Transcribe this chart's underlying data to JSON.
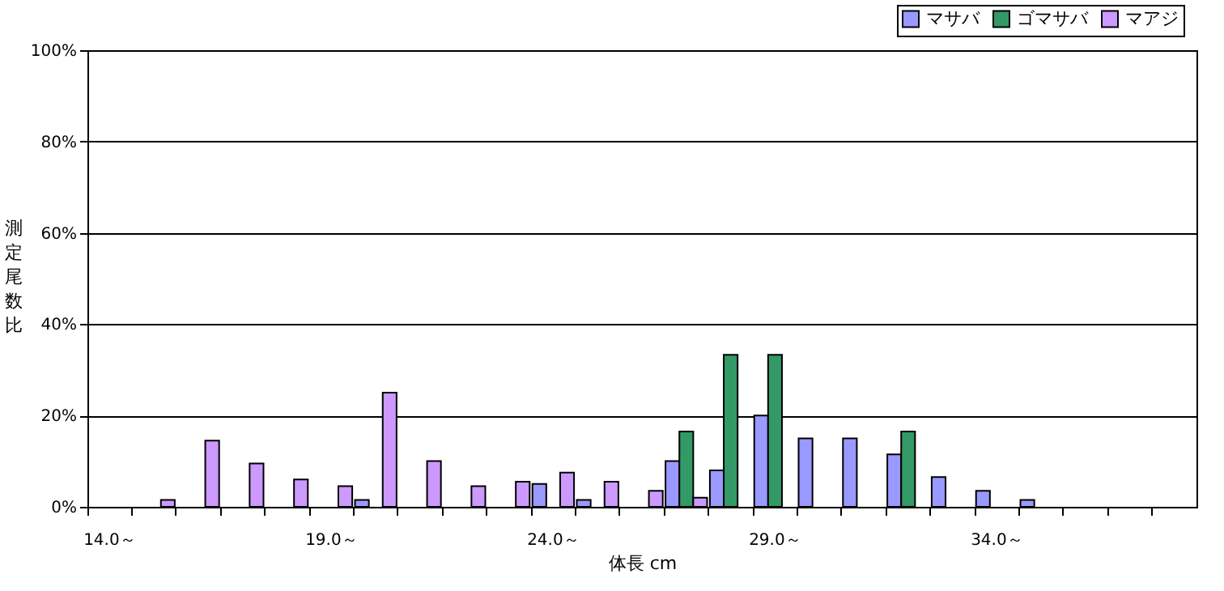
{
  "chart_data": {
    "type": "bar",
    "xlabel": "体長 cm",
    "ylabel": "測定尾数比",
    "categories": [
      "14.0～",
      null,
      null,
      null,
      null,
      "19.0～",
      null,
      null,
      null,
      null,
      "24.0～",
      null,
      null,
      null,
      null,
      "29.0～",
      null,
      null,
      null,
      null,
      "34.0～",
      null,
      null,
      null,
      null
    ],
    "series": [
      {
        "name": "マサバ",
        "color": "#9999ff",
        "values": [
          null,
          null,
          null,
          null,
          null,
          null,
          1.5,
          null,
          null,
          null,
          5,
          1.5,
          null,
          10,
          8,
          20,
          15,
          15,
          11.5,
          6.5,
          3.5,
          1.5,
          null,
          null,
          null
        ]
      },
      {
        "name": "ゴマサバ",
        "color": "#339966",
        "values": [
          null,
          null,
          null,
          null,
          null,
          null,
          null,
          null,
          null,
          null,
          null,
          null,
          null,
          16.5,
          33.3,
          33.3,
          null,
          null,
          16.5,
          null,
          null,
          null,
          null,
          null,
          null
        ]
      },
      {
        "name": "マアジ",
        "color": "#cc99ff",
        "values": [
          null,
          1.5,
          14.5,
          9.5,
          6,
          4.5,
          25,
          10,
          4.5,
          5.5,
          7.5,
          5.5,
          3.5,
          2,
          null,
          null,
          null,
          null,
          null,
          null,
          null,
          null,
          null,
          null,
          null
        ]
      }
    ],
    "ylim": [
      0,
      100
    ],
    "yticks": [
      {
        "value": 0,
        "label": "0%"
      },
      {
        "value": 20,
        "label": "20%"
      },
      {
        "value": 40,
        "label": "40%"
      },
      {
        "value": 60,
        "label": "60%"
      },
      {
        "value": 80,
        "label": "80%"
      },
      {
        "value": 100,
        "label": "100%"
      }
    ],
    "grid": "y",
    "legend": "top right"
  }
}
